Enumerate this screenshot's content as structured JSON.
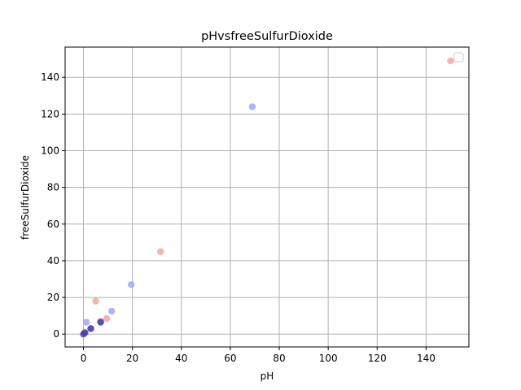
{
  "chart_data": {
    "type": "scatter",
    "title": "pHvsfreeSulfurDioxide",
    "xlabel": "pH",
    "ylabel": "freeSulfurDioxide",
    "xlim": [
      -7.5,
      157.5
    ],
    "ylim": [
      -7.0,
      156.5
    ],
    "xticks": [
      0,
      20,
      40,
      60,
      80,
      100,
      120,
      140
    ],
    "yticks": [
      0,
      20,
      40,
      60,
      80,
      100,
      120,
      140
    ],
    "grid": true,
    "legend": {
      "placement": "top-right",
      "entries": []
    },
    "series": [
      {
        "color": "#f4a3a3",
        "points": [
          {
            "x": 150,
            "y": 149
          },
          {
            "x": 31.5,
            "y": 45
          },
          {
            "x": 5,
            "y": 18
          },
          {
            "x": 9.5,
            "y": 8.5
          },
          {
            "x": 7,
            "y": 7
          },
          {
            "x": 3,
            "y": 3
          },
          {
            "x": 0.3,
            "y": 0.5
          }
        ]
      },
      {
        "color": "#a3a8f4",
        "points": [
          {
            "x": 69,
            "y": 124
          },
          {
            "x": 19.5,
            "y": 27
          },
          {
            "x": 11.5,
            "y": 12.5
          },
          {
            "x": 1.2,
            "y": 6.5
          },
          {
            "x": 7,
            "y": 6.5
          },
          {
            "x": 3,
            "y": 3
          },
          {
            "x": 0.5,
            "y": 0.5
          }
        ]
      },
      {
        "color": "#4a3fa8",
        "points": [
          {
            "x": 0,
            "y": 0
          },
          {
            "x": 0.6,
            "y": 0.8
          },
          {
            "x": 3,
            "y": 3
          },
          {
            "x": 7,
            "y": 6.5
          }
        ]
      }
    ]
  }
}
